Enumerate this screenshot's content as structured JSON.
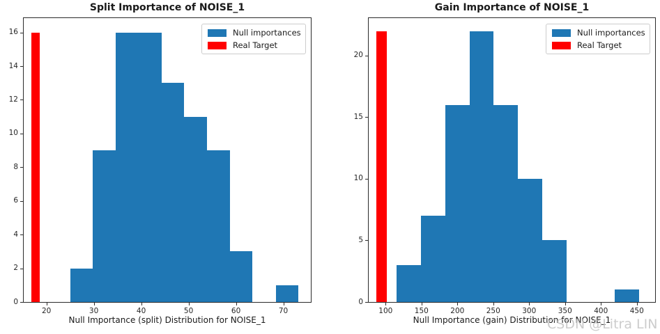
{
  "watermark": "CSDN @Litra LIN",
  "legend": {
    "null_label": "Null importances",
    "target_label": "Real Target"
  },
  "colors": {
    "null_importances": "#1f77b4",
    "real_target": "#ff0000",
    "spine": "#2a2a2a",
    "watermark": "#c3c3c3"
  },
  "chart_data": [
    {
      "type": "bar",
      "subtype": "histogram",
      "title": "Split Importance of NOISE_1",
      "xlabel": "Null Importance (split) Distribution for NOISE_1",
      "ylabel": "",
      "bin_edges": [
        25.0,
        29.8,
        34.6,
        39.5,
        44.3,
        49.1,
        53.9,
        58.7,
        63.5,
        68.4,
        73.2
      ],
      "counts": [
        2,
        9,
        16,
        16,
        13,
        11,
        9,
        3,
        0,
        1
      ],
      "real_target": {
        "x0": 16.8,
        "x1": 18.6,
        "height": 16
      },
      "xlim": [
        15.2,
        75.8
      ],
      "ylim": [
        0,
        16.85
      ],
      "xticks": [
        20,
        30,
        40,
        50,
        60,
        70
      ],
      "yticks": [
        0,
        2,
        4,
        6,
        8,
        10,
        12,
        14,
        16
      ],
      "grid": false,
      "legend_position": "upper right",
      "legend_entries": [
        "Null importances",
        "Real Target"
      ]
    },
    {
      "type": "bar",
      "subtype": "histogram",
      "title": "Gain Importance of NOISE_1",
      "xlabel": "Null Importance (gain) Distribution for NOISE_1",
      "ylabel": "",
      "bin_edges": [
        115.4,
        149.2,
        183.0,
        216.8,
        250.6,
        284.4,
        318.2,
        352.0,
        385.8,
        419.6,
        453.4
      ],
      "counts": [
        3,
        7,
        16,
        22,
        16,
        10,
        5,
        0,
        0,
        1
      ],
      "real_target": {
        "x0": 87.4,
        "x1": 101.9,
        "height": 22
      },
      "xlim": [
        76.4,
        475.5
      ],
      "ylim": [
        0,
        23.05
      ],
      "xticks": [
        100,
        150,
        200,
        250,
        300,
        350,
        400,
        450
      ],
      "yticks": [
        0,
        5,
        10,
        15,
        20
      ],
      "grid": false,
      "legend_position": "upper right",
      "legend_entries": [
        "Null importances",
        "Real Target"
      ]
    }
  ]
}
